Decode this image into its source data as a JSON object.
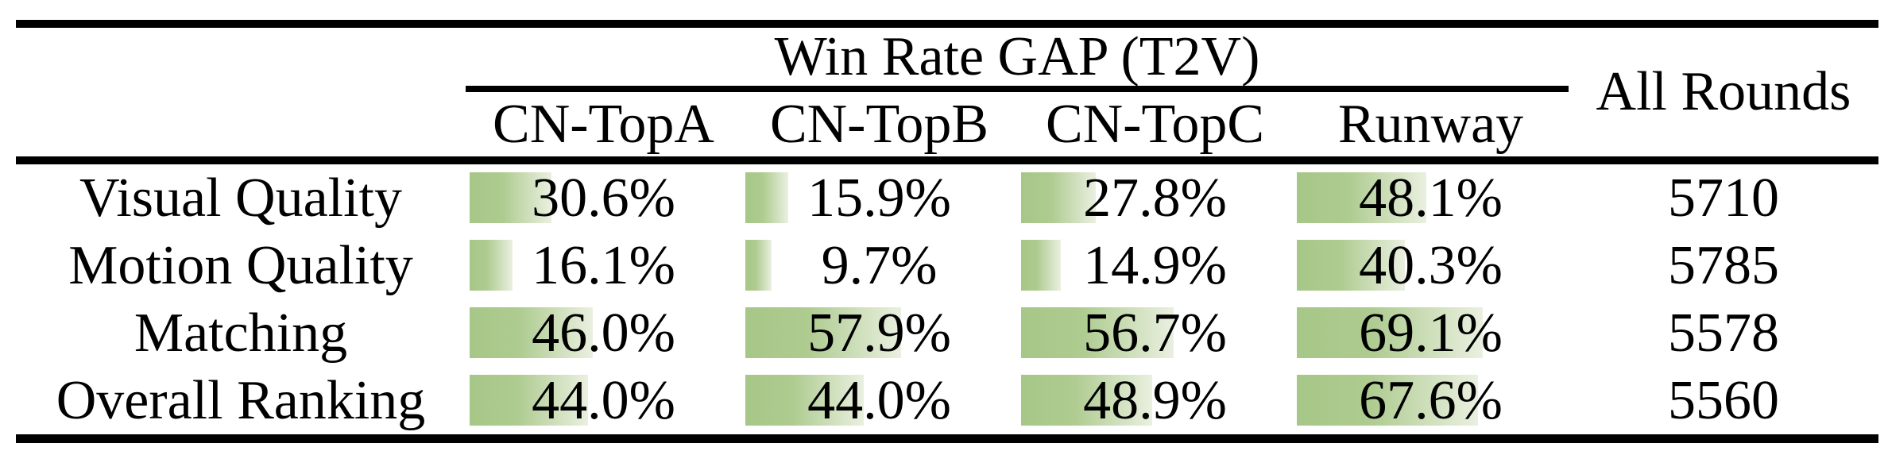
{
  "table": {
    "group_title": "Win Rate GAP (T2V)",
    "columns": [
      "CN-TopA",
      "CN-TopB",
      "CN-TopC",
      "Runway"
    ],
    "all_rounds_label": "All Rounds",
    "rows": [
      {
        "label": "Visual Quality",
        "win_rates": [
          "30.6%",
          "15.9%",
          "27.8%",
          "48.1%"
        ],
        "all_rounds": "5710"
      },
      {
        "label": "Motion Quality",
        "win_rates": [
          "16.1%",
          "9.7%",
          "14.9%",
          "40.3%"
        ],
        "all_rounds": "5785"
      },
      {
        "label": "Matching",
        "win_rates": [
          "46.0%",
          "57.9%",
          "56.7%",
          "69.1%"
        ],
        "all_rounds": "5578"
      },
      {
        "label": "Overall Ranking",
        "win_rates": [
          "44.0%",
          "44.0%",
          "48.9%",
          "67.6%"
        ],
        "all_rounds": "5560"
      }
    ]
  },
  "chart_data": {
    "type": "table",
    "title": "Win Rate GAP (T2V)",
    "categories": [
      "Visual Quality",
      "Motion Quality",
      "Matching",
      "Overall Ranking"
    ],
    "series": [
      {
        "name": "CN-TopA",
        "values": [
          30.6,
          16.1,
          46.0,
          44.0
        ],
        "unit": "%"
      },
      {
        "name": "CN-TopB",
        "values": [
          15.9,
          9.7,
          57.9,
          44.0
        ],
        "unit": "%"
      },
      {
        "name": "CN-TopC",
        "values": [
          27.8,
          14.9,
          56.7,
          48.9
        ],
        "unit": "%"
      },
      {
        "name": "Runway",
        "values": [
          48.1,
          40.3,
          69.1,
          67.6
        ],
        "unit": "%"
      },
      {
        "name": "All Rounds",
        "values": [
          5710,
          5785,
          5578,
          5560
        ],
        "unit": "rounds"
      }
    ],
    "bar_scale_note": "in-cell bars anchored left, width proportional to percentage, full cell width = 100%"
  },
  "colors": {
    "background": "#ffffff",
    "rule": "#000000",
    "text": "#000000",
    "bar_gradient_start": "#a6c787",
    "bar_gradient_mid": "#aecb90",
    "bar_gradient_end": "#eaf0e0"
  }
}
